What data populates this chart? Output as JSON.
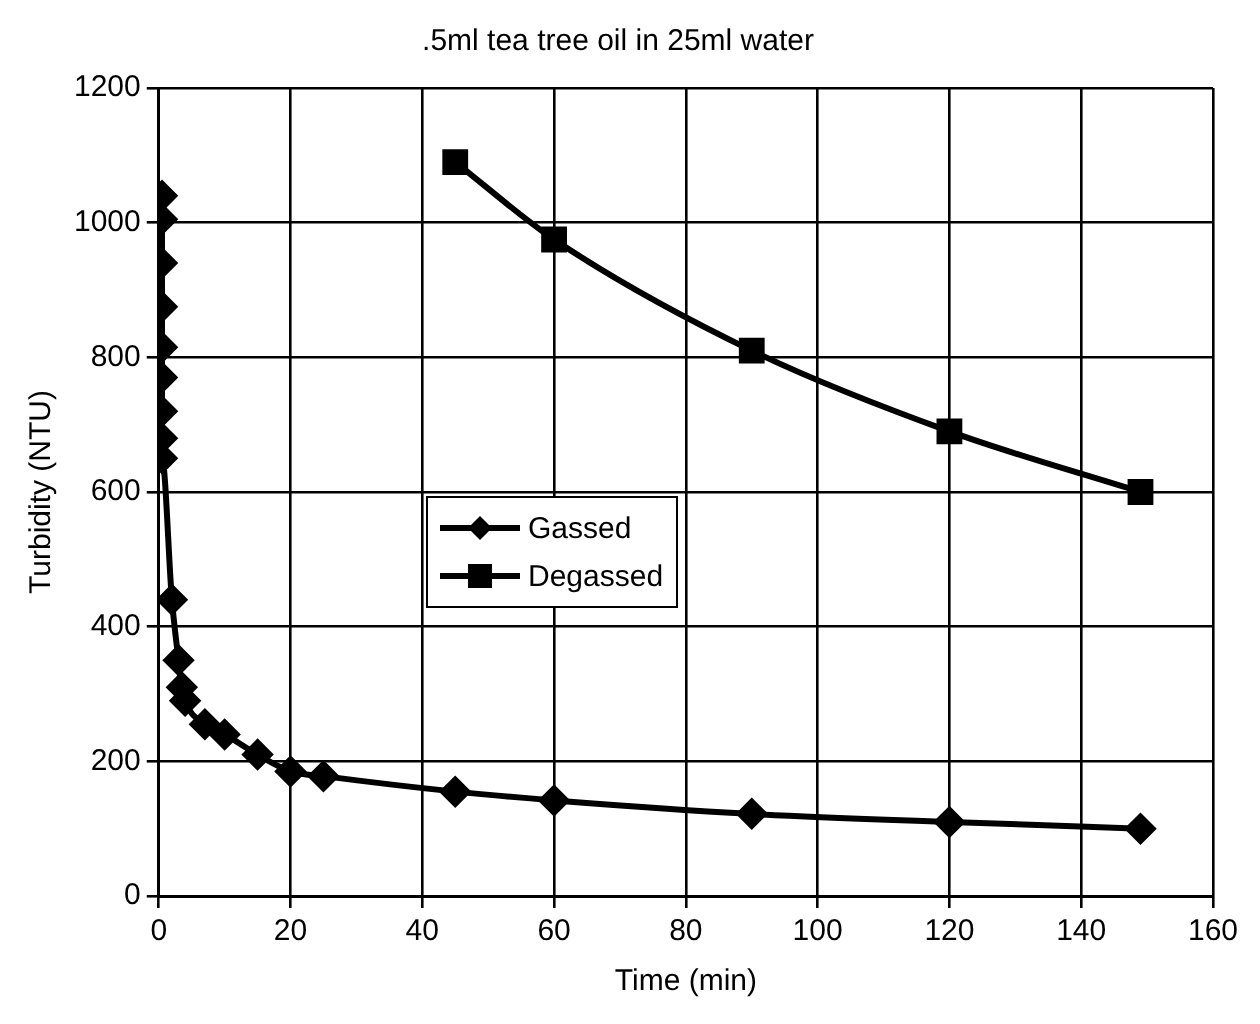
{
  "chart_data": {
    "type": "line",
    "title": ".5ml tea tree oil in 25ml water",
    "xlabel": "Time (min)",
    "ylabel": "Turbidity (NTU)",
    "xlim": [
      0,
      160
    ],
    "xticks": [
      0,
      20,
      40,
      60,
      80,
      100,
      120,
      140,
      160
    ],
    "ylim": [
      0,
      1200
    ],
    "yticks": [
      0,
      200,
      400,
      600,
      800,
      1000,
      1200
    ],
    "grid": true,
    "legend": "left",
    "series": [
      {
        "name": "Gassed",
        "color": "#000000",
        "marker": "diamond",
        "x": [
          0.5,
          0.5,
          0.5,
          0.5,
          0.5,
          0.5,
          0.5,
          0.5,
          0.5,
          2,
          3,
          3.5,
          4,
          7,
          10,
          15,
          20,
          25,
          45,
          60,
          90,
          120,
          149
        ],
        "values": [
          1040,
          1005,
          940,
          875,
          815,
          770,
          720,
          680,
          650,
          440,
          350,
          310,
          290,
          255,
          240,
          210,
          185,
          178,
          155,
          142,
          122,
          110,
          100
        ]
      },
      {
        "name": "Degassed",
        "color": "#000000",
        "marker": "square",
        "x": [
          45,
          60,
          90,
          120,
          149
        ],
        "values": [
          1090,
          975,
          810,
          690,
          600
        ]
      }
    ]
  }
}
